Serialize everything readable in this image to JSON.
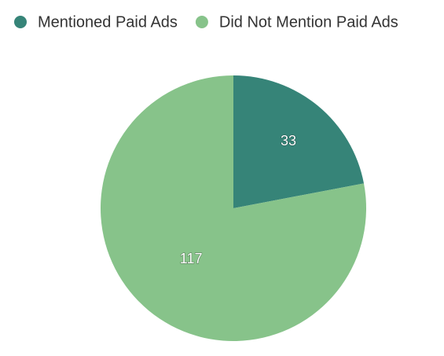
{
  "chart_data": {
    "type": "pie",
    "categories": [
      "Mentioned Paid Ads",
      "Did Not Mention Paid Ads"
    ],
    "values": [
      33,
      117
    ],
    "colors": [
      "#368478",
      "#87c38a"
    ],
    "legend": "top"
  }
}
